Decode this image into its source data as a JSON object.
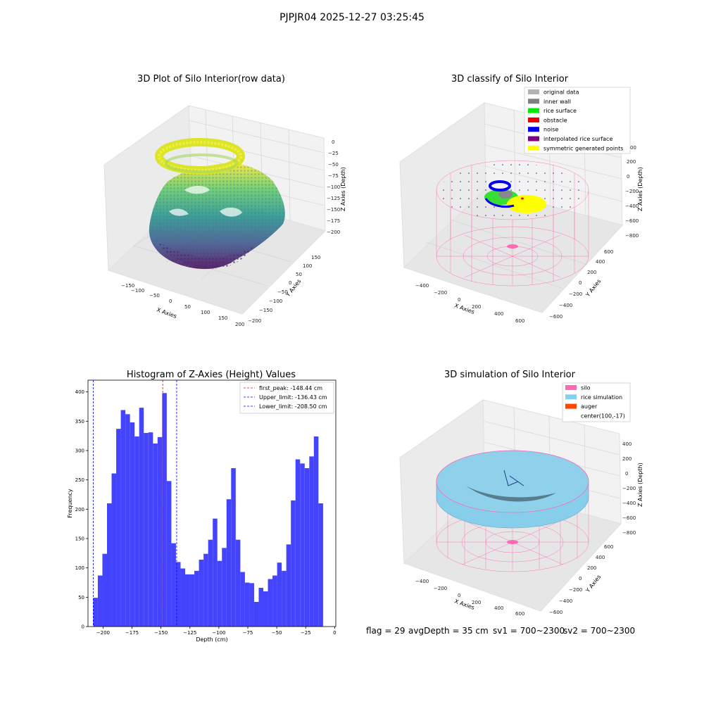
{
  "figure": {
    "suptitle": "PJPJR04 2025-12-27 03:25:45",
    "status": {
      "flag": "flag = 29",
      "avg_depth": "avgDepth = 35 cm",
      "sv1": "sv1 = 700~2300",
      "sv2": "sv2 = 700~2300"
    }
  },
  "chart_data": [
    {
      "type": "scatter",
      "title": "3D Plot of Silo Interior(row data)",
      "xlabel": "X Axies",
      "ylabel": "Y Axies",
      "zlabel": "Z Axies (Depth)",
      "x_ticks": [
        "−150",
        "−100",
        "−50",
        "0",
        "50",
        "100",
        "150",
        "200"
      ],
      "y_ticks": [
        "−200",
        "−150",
        "−100",
        "−50",
        "0",
        "50",
        "100",
        "150"
      ],
      "z_ticks": [
        "0",
        "−25",
        "−50",
        "−75",
        "−100",
        "−125",
        "−150",
        "−175",
        "−200"
      ],
      "colormap": "viridis",
      "zlim": [
        -215,
        0
      ]
    },
    {
      "type": "scatter",
      "title": "3D classify of Silo Interior",
      "xlabel": "X Axies",
      "ylabel": "Y Axies",
      "zlabel": "Z Axies (Depth)",
      "x_ticks": [
        "−400",
        "−200",
        "0",
        "200",
        "400",
        "600"
      ],
      "y_ticks": [
        "−600",
        "−400",
        "−200",
        "0",
        "200",
        "400",
        "600"
      ],
      "z_ticks": [
        "200",
        "0",
        "−200",
        "−400",
        "−600",
        "−800"
      ],
      "z_extra_tick": "00",
      "legend_position": "upper right",
      "legend": [
        {
          "label": "original data",
          "color": "#b3b3b3"
        },
        {
          "label": "inner wall",
          "color": "#808080"
        },
        {
          "label": "rice surface",
          "color": "#00ee00"
        },
        {
          "label": "obstacle",
          "color": "#ee0000"
        },
        {
          "label": "noise",
          "color": "#0000ee"
        },
        {
          "label": "interpolated rice surface",
          "color": "#800080"
        },
        {
          "label": "symmetric generated points",
          "color": "#ffff00"
        }
      ],
      "silo_color": "#ff69b4"
    },
    {
      "type": "bar",
      "title": "Histogram of Z-Axies (Height) Values",
      "xlabel": "Depth (cm)",
      "ylabel": "Frequency",
      "xlim": [
        -213,
        1
      ],
      "ylim": [
        0,
        420
      ],
      "x_ticks": [
        -200,
        -175,
        -150,
        -125,
        -100,
        -75,
        -50,
        -25,
        0
      ],
      "x_tick_labels": [
        "−200",
        "−175",
        "−150",
        "−125",
        "−100",
        "−75",
        "−50",
        "−25",
        "0"
      ],
      "y_ticks": [
        0,
        50,
        100,
        150,
        200,
        250,
        300,
        350,
        400
      ],
      "bin_start": -208.5,
      "bin_width": 3.97,
      "values": [
        49,
        87,
        124,
        210,
        261,
        337,
        369,
        362,
        348,
        324,
        373,
        330,
        331,
        312,
        323,
        398,
        248,
        142,
        110,
        99,
        89,
        89,
        95,
        114,
        124,
        148,
        184,
        112,
        134,
        217,
        270,
        148,
        93,
        75,
        74,
        42,
        66,
        60,
        81,
        87,
        109,
        95,
        140,
        215,
        285,
        278,
        270,
        290,
        324,
        210
      ],
      "bar_color": "#4444ff",
      "vlines": [
        {
          "label": "first_peak: -148.44 cm",
          "x": -148.44,
          "color": "#ff0000"
        },
        {
          "label": "Upper_limit: -136.43 cm",
          "x": -136.43,
          "color": "#0000ff"
        },
        {
          "label": "Lower_limit: -208.50 cm",
          "x": -208.5,
          "color": "#0000ff"
        }
      ],
      "legend_position": "upper right"
    },
    {
      "type": "area",
      "title": "3D simulation of Silo Interior",
      "xlabel": "X Axies",
      "ylabel": "Y Axies",
      "zlabel": "Z Axies (Depth)",
      "x_ticks": [
        "−400",
        "−200",
        "0",
        "200",
        "400",
        "600"
      ],
      "y_ticks": [
        "−600",
        "−400",
        "−200",
        "0",
        "200",
        "400",
        "600"
      ],
      "z_ticks": [
        "400",
        "200",
        "0",
        "−200",
        "−400",
        "−600",
        "−800"
      ],
      "legend_position": "upper right",
      "legend": [
        {
          "label": "silo",
          "color": "#ff69b4"
        },
        {
          "label": "rice simulation",
          "color": "#87ceeb"
        },
        {
          "label": "auger",
          "color": "#ff4500"
        },
        {
          "label": "center(100,-17)",
          "color": "none"
        }
      ]
    }
  ]
}
